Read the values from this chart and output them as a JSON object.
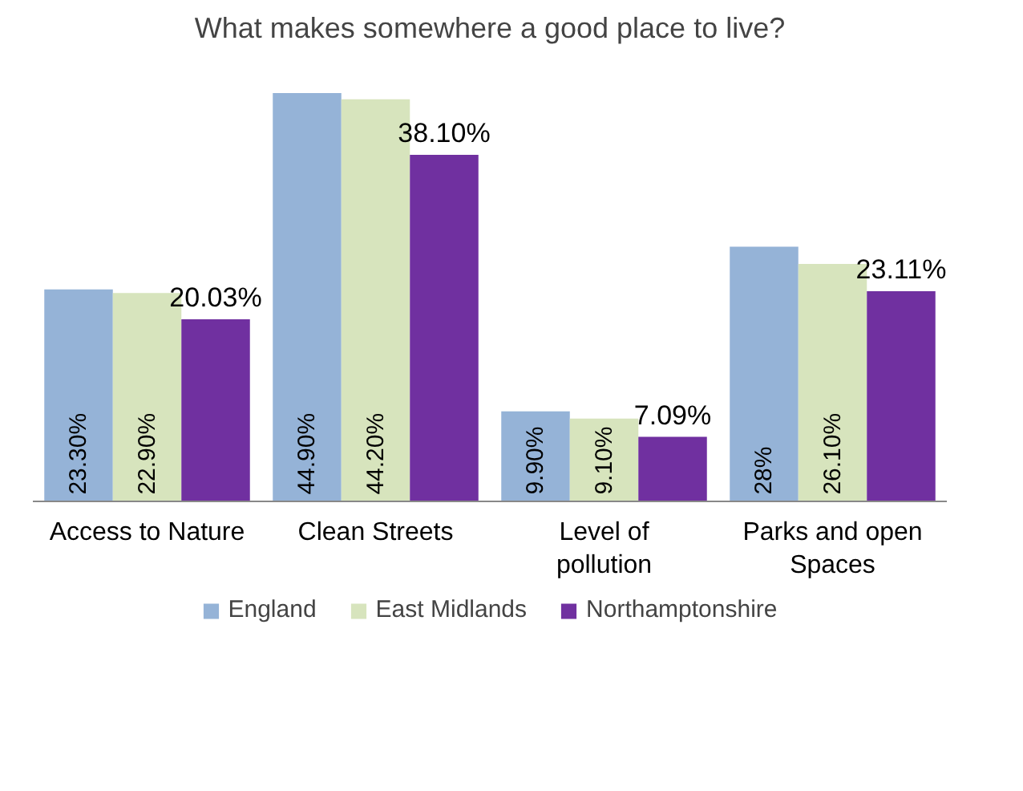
{
  "chart_data": {
    "type": "bar",
    "title": "What makes somewhere a good place to live?",
    "categories": [
      "Access to Nature",
      "Clean Streets",
      "Level of pollution",
      "Parks and open Spaces"
    ],
    "series": [
      {
        "name": "England",
        "color": "#95b3d7",
        "values": [
          23.3,
          44.9,
          9.9,
          28
        ],
        "value_labels": [
          "23.30%",
          "44.90%",
          "9.90%",
          "28%"
        ]
      },
      {
        "name": "East Midlands",
        "color": "#d7e4bd",
        "values": [
          22.9,
          44.2,
          9.1,
          26.1
        ],
        "value_labels": [
          "22.90%",
          "44.20%",
          "9.10%",
          "26.10%"
        ]
      },
      {
        "name": "Northamptonshire",
        "color": "#7030a0",
        "values": [
          20.03,
          38.1,
          7.09,
          23.11
        ],
        "value_labels": [
          "20.03%",
          "38.10%",
          "7.09%",
          "23.11%"
        ]
      }
    ],
    "legend": "bottom"
  }
}
